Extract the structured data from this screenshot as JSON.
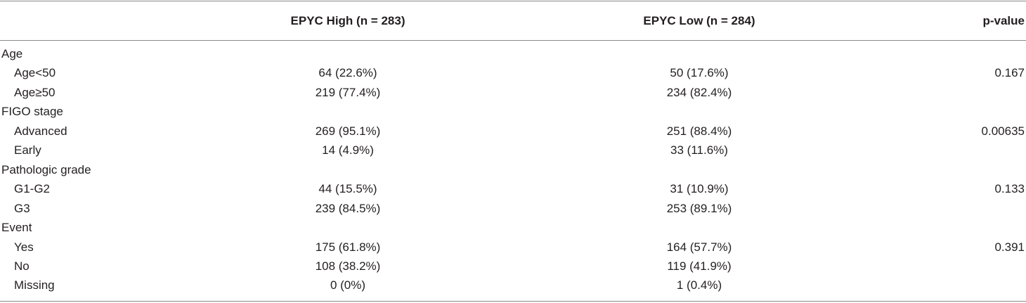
{
  "table": {
    "columns": [
      "EPYC High (n = 283)",
      "EPYC Low (n = 284)",
      "p-value"
    ],
    "groups": [
      {
        "label": "Age",
        "p_value": "0.167",
        "rows": [
          {
            "label": "Age<50",
            "high": "64 (22.6%)",
            "low": "50 (17.6%)"
          },
          {
            "label": "Age≥50",
            "high": "219 (77.4%)",
            "low": "234 (82.4%)"
          }
        ]
      },
      {
        "label": "FIGO stage",
        "p_value": "0.00635",
        "rows": [
          {
            "label": "Advanced",
            "high": "269 (95.1%)",
            "low": "251 (88.4%)"
          },
          {
            "label": "Early",
            "high": "14 (4.9%)",
            "low": "33 (11.6%)"
          }
        ]
      },
      {
        "label": "Pathologic grade",
        "p_value": "0.133",
        "rows": [
          {
            "label": "G1-G2",
            "high": "44 (15.5%)",
            "low": "31 (10.9%)"
          },
          {
            "label": "G3",
            "high": "239 (84.5%)",
            "low": "253 (89.1%)"
          }
        ]
      },
      {
        "label": "Event",
        "p_value": "0.391",
        "rows": [
          {
            "label": "Yes",
            "high": "175 (61.8%)",
            "low": "164 (57.7%)"
          },
          {
            "label": "No",
            "high": "108 (38.2%)",
            "low": "119 (41.9%)"
          },
          {
            "label": "Missing",
            "high": "0 (0%)",
            "low": "1 (0.4%)"
          }
        ]
      }
    ]
  }
}
